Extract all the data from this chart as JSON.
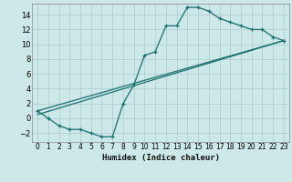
{
  "xlabel": "Humidex (Indice chaleur)",
  "bg_color": "#cce8e8",
  "grid_color": "#aacccc",
  "line_color": "#1a6e6e",
  "xlim": [
    -0.5,
    23.5
  ],
  "ylim": [
    -3.2,
    15.5
  ],
  "xticks": [
    0,
    1,
    2,
    3,
    4,
    5,
    6,
    7,
    8,
    9,
    10,
    11,
    12,
    13,
    14,
    15,
    16,
    17,
    18,
    19,
    20,
    21,
    22,
    23
  ],
  "yticks": [
    -2,
    0,
    2,
    4,
    6,
    8,
    10,
    12,
    14
  ],
  "line1_x": [
    0,
    1,
    2,
    3,
    4,
    5,
    6,
    7,
    8,
    9,
    10,
    11,
    12,
    13,
    14,
    15,
    16,
    17,
    18,
    19,
    20,
    21,
    22,
    23
  ],
  "line1_y": [
    1,
    0,
    -1,
    -1.5,
    -1.5,
    -2.0,
    -2.5,
    -2.5,
    2.0,
    4.5,
    8.5,
    9.0,
    12.5,
    12.5,
    15.0,
    15.0,
    14.5,
    13.5,
    13.0,
    12.5,
    12.0,
    12.0,
    11.0,
    10.5
  ],
  "line2_x": [
    0,
    23
  ],
  "line2_y": [
    1,
    10.5
  ],
  "line3_x": [
    0,
    23
  ],
  "line3_y": [
    0.5,
    10.5
  ]
}
